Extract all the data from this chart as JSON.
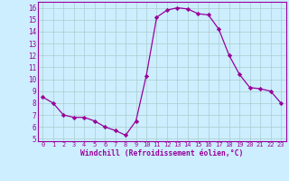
{
  "x": [
    0,
    1,
    2,
    3,
    4,
    5,
    6,
    7,
    8,
    9,
    10,
    11,
    12,
    13,
    14,
    15,
    16,
    17,
    18,
    19,
    20,
    21,
    22,
    23
  ],
  "y": [
    8.5,
    8.0,
    7.0,
    6.8,
    6.8,
    6.5,
    6.0,
    5.7,
    5.3,
    6.5,
    10.3,
    15.2,
    15.8,
    16.0,
    15.9,
    15.5,
    15.4,
    14.2,
    12.0,
    10.4,
    9.3,
    9.2,
    9.0,
    8.0
  ],
  "line_color": "#990099",
  "marker": "D",
  "marker_size": 2.2,
  "bg_color": "#cceeff",
  "grid_color": "#aacccc",
  "xlabel": "Windchill (Refroidissement éolien,°C)",
  "xlabel_color": "#990099",
  "tick_color": "#990099",
  "xlim": [
    -0.5,
    23.5
  ],
  "ylim": [
    4.8,
    16.5
  ],
  "yticks": [
    5,
    6,
    7,
    8,
    9,
    10,
    11,
    12,
    13,
    14,
    15,
    16
  ],
  "xticks": [
    0,
    1,
    2,
    3,
    4,
    5,
    6,
    7,
    8,
    9,
    10,
    11,
    12,
    13,
    14,
    15,
    16,
    17,
    18,
    19,
    20,
    21,
    22,
    23
  ]
}
